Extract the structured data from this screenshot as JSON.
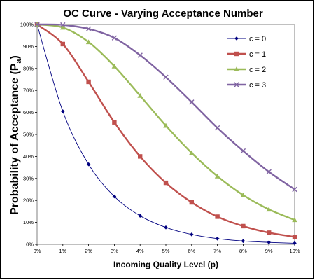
{
  "chart_data": {
    "type": "line",
    "title": "OC Curve - Varying Acceptance Number",
    "xlabel": "Incoming Quality Level (p)",
    "ylabel_main": "Probability of Acceptance (P",
    "ylabel_sub": "a",
    "ylabel_close": ")",
    "x": [
      0,
      1,
      2,
      3,
      4,
      5,
      6,
      7,
      8,
      9,
      10
    ],
    "x_tick_labels": [
      "0%",
      "1%",
      "2%",
      "3%",
      "4%",
      "5%",
      "6%",
      "7%",
      "8%",
      "9%",
      "10%"
    ],
    "y_tick_values": [
      0,
      10,
      20,
      30,
      40,
      50,
      60,
      70,
      80,
      90,
      100
    ],
    "y_tick_labels": [
      "0%",
      "10%",
      "20%",
      "30%",
      "40%",
      "50%",
      "60%",
      "70%",
      "80%",
      "90%",
      "100%"
    ],
    "xlim": [
      0,
      10
    ],
    "ylim": [
      0,
      100
    ],
    "grid": false,
    "legend_position": "top-right",
    "series": [
      {
        "name": "c = 0",
        "color": "#000080",
        "marker": "diamond",
        "values": [
          100,
          60.5,
          36.4,
          21.8,
          13.0,
          7.7,
          4.5,
          2.6,
          1.5,
          0.9,
          0.5
        ]
      },
      {
        "name": "c = 1",
        "color": "#c0504d",
        "marker": "square",
        "values": [
          100,
          91.1,
          73.9,
          55.5,
          40.0,
          28.0,
          19.1,
          12.6,
          8.3,
          5.3,
          3.4
        ]
      },
      {
        "name": "c = 2",
        "color": "#9bbb59",
        "marker": "triangle",
        "values": [
          100,
          98.6,
          92.0,
          81.0,
          67.6,
          54.0,
          41.6,
          31.0,
          22.4,
          15.9,
          11.1
        ]
      },
      {
        "name": "c = 3",
        "color": "#8064a2",
        "marker": "x",
        "values": [
          100,
          99.8,
          98.0,
          93.9,
          86.0,
          76.0,
          64.7,
          53.0,
          42.5,
          33.0,
          25.0
        ]
      }
    ]
  }
}
